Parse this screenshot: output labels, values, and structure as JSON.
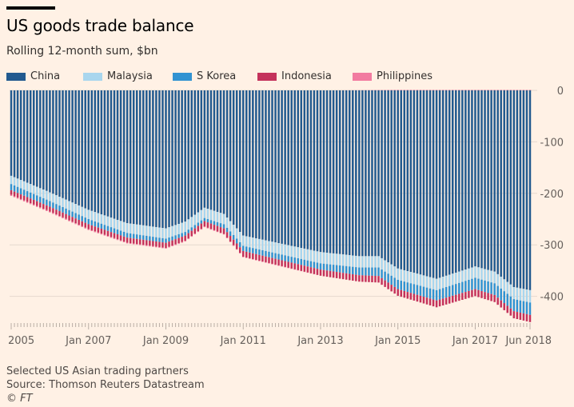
{
  "title": "US goods trade balance",
  "subtitle": "Rolling 12-month sum, $bn",
  "legend": [
    {
      "name": "China",
      "color": "#225a8f"
    },
    {
      "name": "Malaysia",
      "color": "#a9d6ee"
    },
    {
      "name": "S Korea",
      "color": "#3193d2"
    },
    {
      "name": "Indonesia",
      "color": "#c4325b"
    },
    {
      "name": "Philippines",
      "color": "#f27ba0"
    }
  ],
  "footer": {
    "note": "Selected US Asian trading partners",
    "source": "Source: Thomson Reuters Datastream",
    "credit": "© FT"
  },
  "chart_data": {
    "type": "bar",
    "stacked": true,
    "ylim": [
      -460,
      0
    ],
    "y_ticks": [
      0,
      -100,
      -200,
      -300,
      -400
    ],
    "x_tick_labels": [
      "2005",
      "Jan 2007",
      "Jan 2009",
      "Jan 2011",
      "Jan 2013",
      "Jan 2015",
      "Jan 2017",
      "Jun 2018"
    ],
    "x_tick_index": [
      0,
      24,
      48,
      72,
      96,
      120,
      144,
      161
    ],
    "month_count": 162,
    "series": [
      {
        "name": "China",
        "color": "#225a8f",
        "anchors": [
          [
            0,
            -166
          ],
          [
            12,
            -198
          ],
          [
            24,
            -232
          ],
          [
            36,
            -258
          ],
          [
            48,
            -268
          ],
          [
            54,
            -255
          ],
          [
            60,
            -228
          ],
          [
            66,
            -240
          ],
          [
            72,
            -282
          ],
          [
            84,
            -298
          ],
          [
            96,
            -314
          ],
          [
            108,
            -322
          ],
          [
            114,
            -322
          ],
          [
            120,
            -346
          ],
          [
            132,
            -366
          ],
          [
            138,
            -354
          ],
          [
            144,
            -342
          ],
          [
            150,
            -352
          ],
          [
            156,
            -382
          ],
          [
            161,
            -388
          ]
        ]
      },
      {
        "name": "Malaysia",
        "color": "#a9d6ee",
        "anchors": [
          [
            0,
            -16
          ],
          [
            24,
            -18
          ],
          [
            48,
            -20
          ],
          [
            72,
            -20
          ],
          [
            96,
            -22
          ],
          [
            120,
            -22
          ],
          [
            144,
            -22
          ],
          [
            161,
            -24
          ]
        ]
      },
      {
        "name": "S Korea",
        "color": "#3193d2",
        "anchors": [
          [
            0,
            -12
          ],
          [
            24,
            -10
          ],
          [
            48,
            -8
          ],
          [
            60,
            -6
          ],
          [
            72,
            -10
          ],
          [
            96,
            -12
          ],
          [
            120,
            -18
          ],
          [
            144,
            -22
          ],
          [
            161,
            -24
          ]
        ]
      },
      {
        "name": "Indonesia",
        "color": "#c4325b",
        "anchors": [
          [
            0,
            -9
          ],
          [
            48,
            -10
          ],
          [
            96,
            -12
          ],
          [
            120,
            -13
          ],
          [
            161,
            -14
          ]
        ]
      },
      {
        "name": "Philippines",
        "color": "#f27ba0",
        "anchors": [
          [
            0,
            -2
          ],
          [
            80,
            -1
          ],
          [
            100,
            0
          ],
          [
            120,
            1
          ],
          [
            161,
            1
          ]
        ]
      }
    ]
  }
}
